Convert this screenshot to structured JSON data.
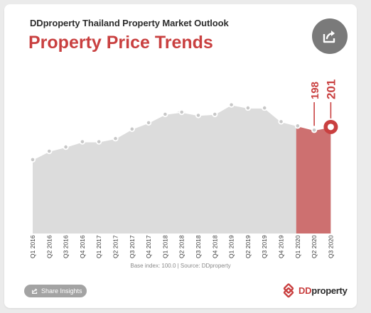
{
  "header": {
    "subtitle": "DDproperty Thailand Property Market Outlook",
    "title": "Property Price Trends"
  },
  "footer": {
    "source": "Base index: 100.0 | Source: DDproperty",
    "share_button": "Share Insights",
    "logo_prefix": "DD",
    "logo_suffix": "property"
  },
  "icons": {
    "share_top": "share-icon",
    "share_button": "share-icon",
    "logo": "ddproperty-logo-icon",
    "watermark": "ddproperty-watermark-icon"
  },
  "colors": {
    "accent": "#c94040",
    "area": "#dcdcdc",
    "line": "#ffffff",
    "point": "#c8c8c8",
    "highlight": "#cd7070"
  },
  "chart_data": {
    "type": "area",
    "categories": [
      "Q1 2016",
      "Q2 2016",
      "Q3 2016",
      "Q4 2016",
      "Q1 2017",
      "Q2 2017",
      "Q3 2017",
      "Q4 2017",
      "Q1 2018",
      "Q2 2018",
      "Q3 2018",
      "Q4 2018",
      "Q1 2019",
      "Q2 2019",
      "Q3 2019",
      "Q4 2019",
      "Q1 2020",
      "Q2 2020",
      "Q3 2020"
    ],
    "values": [
      170,
      178,
      182,
      187,
      187,
      190,
      199,
      205,
      213,
      215,
      212,
      213,
      222,
      219,
      219,
      206,
      202,
      198,
      201
    ],
    "ylim": [
      100,
      250
    ],
    "highlight_range": [
      "Q1 2020",
      "Q3 2020"
    ],
    "annotations": [
      {
        "category": "Q2 2020",
        "label": "198"
      },
      {
        "category": "Q3 2020",
        "label": "201"
      }
    ],
    "grid": false,
    "legend": "none"
  }
}
